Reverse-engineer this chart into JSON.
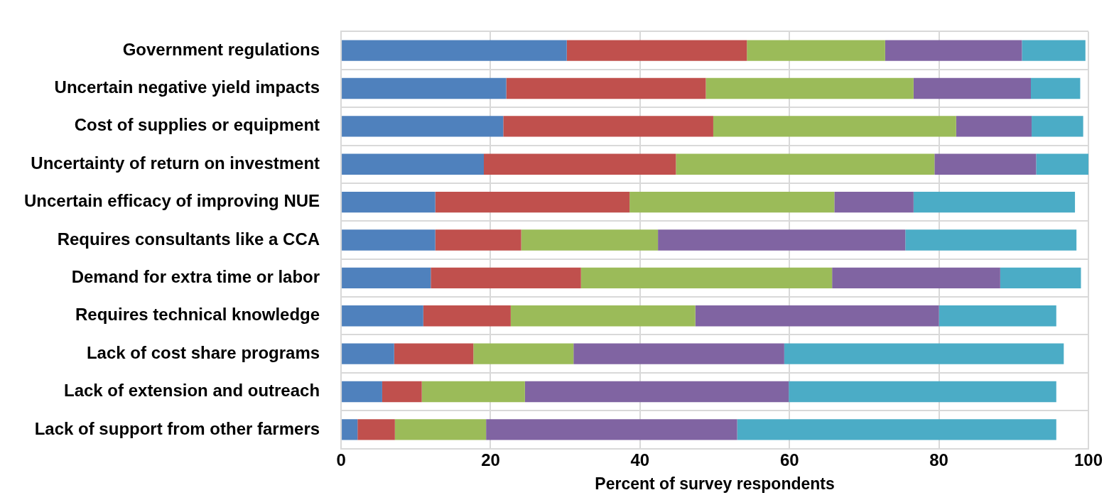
{
  "chart_data": {
    "type": "bar",
    "orientation": "horizontal",
    "stacked": true,
    "xlabel": "Percent of survey respondents",
    "categories": [
      "Government regulations",
      "Uncertain negative yield impacts",
      "Cost of supplies or equipment",
      "Uncertainty of return on investment",
      "Uncertain efficacy of improving NUE",
      "Requires consultants like a CCA",
      "Demand for extra time or labor",
      "Requires technical knowledge",
      "Lack of cost share programs",
      "Lack of extension and outreach",
      "Lack of support from other farmers"
    ],
    "series": [
      {
        "color": "#4f81bd",
        "values": [
          30.2,
          22.1,
          21.7,
          19.1,
          12.6,
          12.6,
          12.0,
          11.0,
          7.1,
          5.5,
          2.2
        ]
      },
      {
        "color": "#c0504d",
        "values": [
          24.1,
          26.7,
          28.1,
          25.7,
          26.0,
          11.5,
          20.1,
          11.7,
          10.6,
          5.3,
          5.0
        ]
      },
      {
        "color": "#9bbb59",
        "values": [
          18.5,
          27.8,
          32.5,
          34.6,
          27.4,
          18.3,
          33.6,
          24.7,
          13.4,
          13.8,
          12.2
        ]
      },
      {
        "color": "#8064a2",
        "values": [
          18.3,
          15.7,
          10.1,
          13.6,
          10.6,
          33.1,
          22.5,
          32.6,
          28.2,
          35.3,
          33.6
        ]
      },
      {
        "color": "#4bacc6",
        "values": [
          8.5,
          6.6,
          6.9,
          7.0,
          21.6,
          22.9,
          10.8,
          15.7,
          37.4,
          35.8,
          42.7
        ]
      }
    ],
    "xlim": [
      0,
      100
    ],
    "xticks": [
      0,
      20,
      40,
      60,
      80,
      100
    ],
    "grid": true,
    "legend": false
  }
}
